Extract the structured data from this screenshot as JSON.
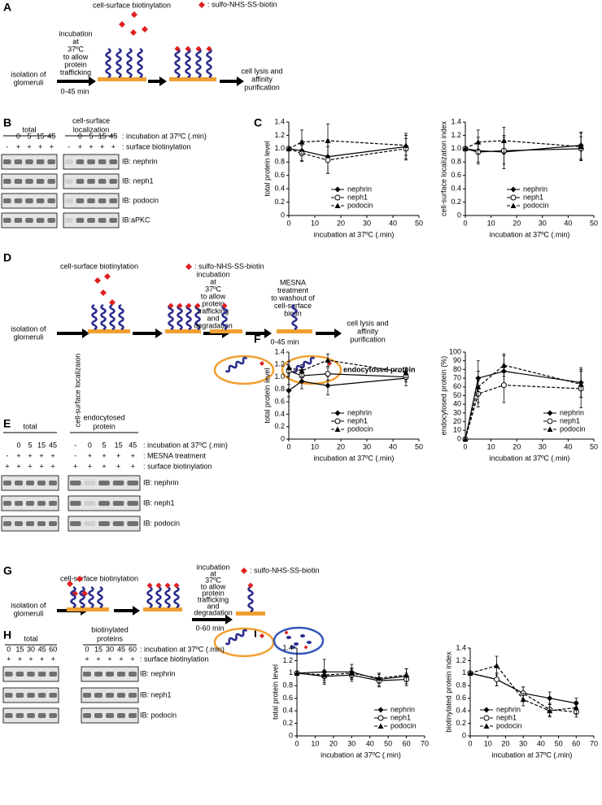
{
  "letters": [
    "A",
    "B",
    "C",
    "D",
    "E",
    "F",
    "G",
    "H",
    "I"
  ],
  "diagram_a": {
    "biotinylation": "cell-surface biotinylation",
    "reagent": ": sulfo-NHS-SS-biotin",
    "incubation": [
      "incubation",
      "at",
      "37ºC",
      "to allow",
      "protein",
      "trafficking"
    ],
    "time": "0-45 min",
    "start": [
      "isolation of",
      "glomeruli"
    ],
    "end": [
      "cell lysis and",
      "affinity",
      "purification"
    ]
  },
  "diagram_d": {
    "biotinylation": "cell-surface biotinylation",
    "reagent": ": sulfo-NHS-SS-biotin",
    "incubation": [
      "incubation",
      "at",
      "37ºC",
      "to allow",
      "protein",
      "trafficking",
      "and",
      "degradation"
    ],
    "mesna": [
      "MESNA",
      "treatment",
      "to washout of",
      "cell-surface",
      "biotin"
    ],
    "time": "0-45 min",
    "start": [
      "isolation of",
      "glomeruli"
    ],
    "end": [
      "cell lysis and",
      "affinity",
      "purification"
    ],
    "result": "endocytosed protein"
  },
  "diagram_g": {
    "biotinylation": "cell-surface biotinylation",
    "reagent": ": sulfo-NHS-SS-biotin",
    "incubation": [
      "incubation",
      "at",
      "37ºC",
      "to allow",
      "protein",
      "trafficking",
      "and",
      "degradation"
    ],
    "time": "0-60 min",
    "start": [
      "isolation of",
      "glomeruli"
    ]
  },
  "blot_b": {
    "groups": [
      {
        "title": [
          "total"
        ],
        "rows": [
          [
            null,
            "0",
            "5",
            "15",
            "45"
          ],
          [
            "-",
            "+",
            "+",
            "+",
            "+"
          ]
        ]
      },
      {
        "title": [
          "cell-surface",
          "localization"
        ],
        "rows": [
          [
            null,
            "0",
            "5",
            "15",
            "45"
          ],
          [
            "-",
            "+",
            "+",
            "+",
            "+"
          ]
        ]
      }
    ],
    "row_labels": [
      ": incubation at 37ºC (.min)",
      ": surface biotinylation"
    ],
    "ib": [
      "IB: nephrin",
      "IB: neph1",
      "IB: podocin",
      "IB:aPKC"
    ]
  },
  "blot_e": {
    "groups": [
      {
        "title": [
          "total"
        ],
        "rows": [
          [
            null,
            "0",
            "5",
            "15",
            "45"
          ],
          [
            "-",
            "+",
            "+",
            "+",
            "+"
          ],
          [
            "+",
            "+",
            "+",
            "+",
            "+"
          ]
        ]
      },
      {
        "title": [
          "endocytosed",
          "protein"
        ],
        "rows": [
          [
            "-",
            "0",
            "5",
            "15",
            "45"
          ],
          [
            "-",
            "+",
            "+",
            "+",
            "+"
          ],
          [
            "+",
            "+",
            "+",
            "+",
            "+"
          ]
        ]
      }
    ],
    "vertical": "cell-surface localizaion",
    "row_labels": [
      ": incubation at 37ºC (.min)",
      ": MESNA treatment",
      ": surface biotinylation"
    ],
    "ib": [
      "IB: nephrin",
      "IB: neph1",
      "IB: podocin"
    ]
  },
  "blot_h": {
    "groups": [
      {
        "title": [
          "total"
        ],
        "rows": [
          [
            "0",
            "15",
            "30",
            "45",
            "60"
          ],
          [
            "+",
            "+",
            "+",
            "+",
            "+"
          ]
        ]
      },
      {
        "title": [
          "biotinylated",
          "proteins"
        ],
        "rows": [
          [
            "0",
            "15",
            "30",
            "45",
            "60"
          ],
          [
            "+",
            "+",
            "+",
            "+",
            "+"
          ]
        ]
      }
    ],
    "row_labels": [
      ": incubation at 37ºC (.min)",
      ": surface biotinylation"
    ],
    "ib": [
      "IB: nephrin",
      "IB: neph1",
      "IB: podocin"
    ]
  },
  "chart_data": [
    {
      "type": "line",
      "xlabel": "incubation at 37ºC (.min)",
      "ylabel": "total protein level",
      "legend": "lower center",
      "x": [
        0,
        5,
        15,
        45
      ],
      "xlim": [
        0,
        50
      ],
      "xticks": [
        0,
        10,
        20,
        30,
        40,
        50
      ],
      "ylim": [
        0,
        1.4
      ],
      "yticks": [
        0,
        0.2,
        0.4,
        0.6,
        0.8,
        {
          "value": 1,
          "label": "1.0"
        },
        1.2,
        1.4
      ],
      "series": [
        {
          "name": "nephrin",
          "marker": "diamond",
          "dash": "solid",
          "color": "#000000",
          "values": [
            1.0,
            0.97,
            0.88,
            1.03
          ],
          "errors": [
            0,
            0.15,
            0.25,
            0.2
          ]
        },
        {
          "name": "neph1",
          "marker": "circle-open",
          "dash": "dashed",
          "color": "#000000",
          "values": [
            1.0,
            0.93,
            0.83,
            1.0
          ],
          "errors": [
            0,
            0.12,
            0.2,
            0.15
          ]
        },
        {
          "name": "podocin",
          "marker": "triangle",
          "dash": "dashed",
          "color": "#000000",
          "values": [
            1.0,
            1.1,
            1.12,
            1.05
          ],
          "errors": [
            0,
            0.18,
            0.25,
            0.15
          ]
        }
      ]
    },
    {
      "type": "line",
      "xlabel": "incubation at 37ºC (.min)",
      "ylabel": "cell-surface localization index",
      "legend": "lower center",
      "x": [
        0,
        5,
        15,
        45
      ],
      "xlim": [
        0,
        50
      ],
      "xticks": [
        0,
        10,
        20,
        30,
        40,
        50
      ],
      "ylim": [
        0,
        1.4
      ],
      "yticks": [
        0,
        0.2,
        0.4,
        0.6,
        0.8,
        {
          "value": 1,
          "label": "1.0"
        },
        1.2,
        1.4
      ],
      "series": [
        {
          "name": "nephrin",
          "marker": "diamond",
          "dash": "solid",
          "color": "#000000",
          "values": [
            1.0,
            0.97,
            0.95,
            1.05
          ],
          "errors": [
            0,
            0.2,
            0.25,
            0.2
          ]
        },
        {
          "name": "neph1",
          "marker": "circle-open",
          "dash": "solid",
          "color": "#000000",
          "values": [
            1.0,
            0.95,
            0.97,
            1.0
          ],
          "errors": [
            0,
            0.15,
            0.2,
            0.18
          ]
        },
        {
          "name": "podocin",
          "marker": "triangle",
          "dash": "dashed",
          "color": "#000000",
          "values": [
            1.0,
            1.1,
            1.12,
            1.03
          ],
          "errors": [
            0,
            0.18,
            0.2,
            0.2
          ]
        }
      ]
    },
    {
      "type": "line",
      "xlabel": "incubation at 37ºC (.min)",
      "ylabel": "total protein level",
      "legend": "lower center",
      "x": [
        0,
        5,
        15,
        45
      ],
      "xlim": [
        0,
        50
      ],
      "xticks": [
        0,
        10,
        20,
        30,
        40,
        50
      ],
      "ylim": [
        0,
        1.4
      ],
      "yticks": [
        0,
        0.2,
        0.4,
        0.6,
        0.8,
        {
          "value": 1,
          "label": "1.0"
        },
        1.2,
        1.4
      ],
      "series": [
        {
          "name": "nephrin",
          "marker": "diamond",
          "dash": "solid",
          "color": "#000000",
          "values": [
            0.78,
            0.93,
            0.86,
            0.98
          ],
          "errors": [
            0.1,
            0.12,
            0.15,
            0.12
          ]
        },
        {
          "name": "neph1",
          "marker": "circle-open",
          "dash": "solid",
          "color": "#000000",
          "values": [
            1.1,
            1.02,
            1.05,
            1.0
          ],
          "errors": [
            0.08,
            0.1,
            0.1,
            0.08
          ]
        },
        {
          "name": "podocin",
          "marker": "triangle",
          "dash": "dashed",
          "color": "#000000",
          "values": [
            1.15,
            1.1,
            1.27,
            1.07
          ],
          "errors": [
            0.1,
            0.1,
            0.1,
            0.08
          ]
        }
      ]
    },
    {
      "type": "line",
      "xlabel": "incubation at 37ºC (.min)",
      "ylabel": "endocytosed protein (%)",
      "legend": "lower right",
      "x": [
        0,
        5,
        15,
        45
      ],
      "xlim": [
        0,
        50
      ],
      "xticks": [
        0,
        10,
        20,
        30,
        40,
        50
      ],
      "ylim": [
        0,
        100
      ],
      "yticks": [
        0,
        10,
        20,
        30,
        40,
        50,
        60,
        70,
        80,
        90,
        100
      ],
      "series": [
        {
          "name": "nephrin",
          "marker": "diamond",
          "dash": "solid",
          "color": "#000000",
          "values": [
            0,
            70,
            78,
            65
          ],
          "errors": [
            0,
            20,
            18,
            17
          ]
        },
        {
          "name": "neph1",
          "marker": "circle-open",
          "dash": "dashed",
          "color": "#000000",
          "values": [
            0,
            52,
            62,
            58
          ],
          "errors": [
            0,
            15,
            20,
            22
          ]
        },
        {
          "name": "podocin",
          "marker": "triangle",
          "dash": "dashed",
          "color": "#000000",
          "values": [
            0,
            60,
            85,
            63
          ],
          "errors": [
            0,
            18,
            13,
            15
          ]
        }
      ]
    },
    {
      "type": "line",
      "xlabel": "incubation at 37ºC (.min)",
      "ylabel": "total protein level",
      "legend": "lower right",
      "x": [
        0,
        15,
        30,
        45,
        60
      ],
      "xlim": [
        0,
        70
      ],
      "xticks": [
        0,
        10,
        20,
        30,
        40,
        50,
        60,
        70
      ],
      "ylim": [
        0,
        1.4
      ],
      "yticks": [
        0,
        0.2,
        0.4,
        0.6,
        0.8,
        1,
        1.2,
        1.4
      ],
      "series": [
        {
          "name": "nephrin",
          "marker": "diamond",
          "dash": "solid",
          "color": "#000000",
          "values": [
            1.0,
            1.02,
            1.02,
            0.9,
            0.95
          ],
          "errors": [
            0,
            0.2,
            0.12,
            0.1,
            0.12
          ]
        },
        {
          "name": "neph1",
          "marker": "circle-open",
          "dash": "solid",
          "color": "#000000",
          "values": [
            1.0,
            0.95,
            0.97,
            0.88,
            0.9
          ],
          "errors": [
            0,
            0.1,
            0.1,
            0.1,
            0.1
          ]
        },
        {
          "name": "podocin",
          "marker": "triangle",
          "dash": "dashed",
          "color": "#000000",
          "values": [
            1.0,
            0.97,
            1.0,
            0.92,
            0.97
          ],
          "errors": [
            0,
            0.08,
            0.08,
            0.08,
            0.1
          ]
        }
      ]
    },
    {
      "type": "line",
      "xlabel": "incubation at 37ºC (.min)",
      "ylabel": "biotinylated protein index",
      "legend": "lower left",
      "x": [
        0,
        15,
        30,
        45,
        60
      ],
      "xlim": [
        0,
        70
      ],
      "xticks": [
        0,
        10,
        20,
        30,
        40,
        50,
        60,
        70
      ],
      "ylim": [
        0,
        1.4
      ],
      "yticks": [
        0,
        0.2,
        0.4,
        0.6,
        0.8,
        1,
        1.2,
        1.4
      ],
      "series": [
        {
          "name": "nephrin",
          "marker": "diamond",
          "dash": "solid",
          "color": "#000000",
          "values": [
            1.0,
            0.9,
            0.68,
            0.6,
            0.52
          ],
          "errors": [
            0,
            0.1,
            0.1,
            0.1,
            0.08
          ]
        },
        {
          "name": "neph1",
          "marker": "circle-open",
          "dash": "dashed",
          "color": "#000000",
          "values": [
            1.0,
            0.9,
            0.68,
            0.42,
            0.38
          ],
          "errors": [
            0,
            0.1,
            0.1,
            0.1,
            0.08
          ]
        },
        {
          "name": "podocin",
          "marker": "triangle",
          "dash": "dashed",
          "color": "#000000",
          "values": [
            1.0,
            1.12,
            0.58,
            0.4,
            0.45
          ],
          "errors": [
            0,
            0.15,
            0.1,
            0.1,
            0.1
          ]
        }
      ]
    }
  ]
}
